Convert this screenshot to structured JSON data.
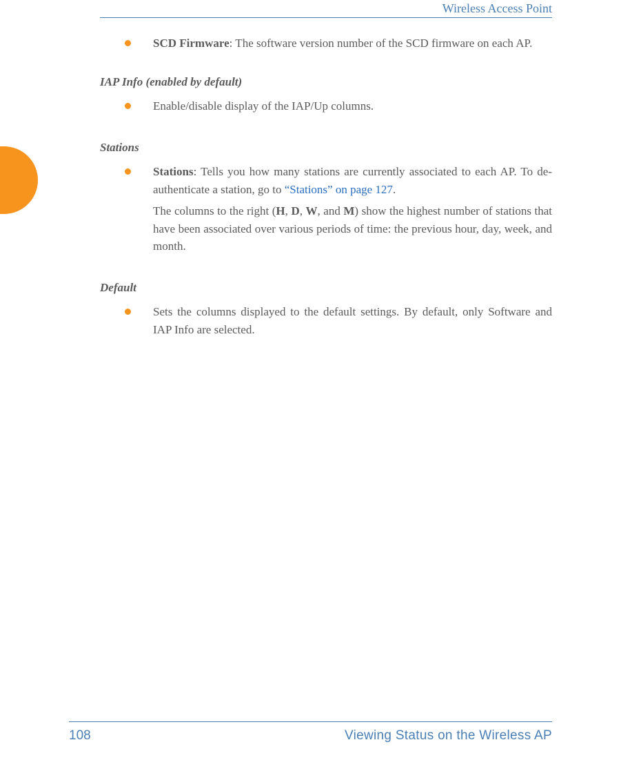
{
  "colors": {
    "accent_orange": "#f7941e",
    "header_blue": "#4a7fb5",
    "link_blue": "#2a6fbf",
    "body_text": "#5a5a5a",
    "background": "#ffffff"
  },
  "typography": {
    "body_font": "Palatino Linotype, Book Antiqua, Palatino, Georgia, serif",
    "footer_font": "Arial, Helvetica, sans-serif",
    "body_size_pt": 13,
    "heading_italic": true,
    "heading_bold": true
  },
  "header": {
    "running_title": "Wireless Access Point"
  },
  "sections": {
    "scd_firmware": {
      "term": "SCD Firmware",
      "text": ": The software version number of the SCD firmware on each AP."
    },
    "iap_info": {
      "heading": "IAP Info (enabled by default)",
      "bullet": "Enable/disable display of the IAP/Up columns."
    },
    "stations": {
      "heading": "Stations",
      "term": "Stations",
      "text1a": ": Tells you how many stations are currently associated to each AP. To de-authenticate a station, go to ",
      "link_text": "“Stations” on page 127",
      "text1b": ".",
      "text2a": "The columns to the right (",
      "col_h": "H",
      "sep1": ", ",
      "col_d": "D",
      "sep2": ", ",
      "col_w": "W",
      "sep3": ", and ",
      "col_m": "M",
      "text2b": ") show the highest number of stations that have been associated over various periods of time: the previous hour, day, week, and month."
    },
    "default": {
      "heading": "Default",
      "bullet": "Sets the columns displayed to the default settings. By default, only Software and IAP Info are selected."
    }
  },
  "footer": {
    "page_number": "108",
    "section_title": "Viewing Status on the Wireless AP"
  }
}
